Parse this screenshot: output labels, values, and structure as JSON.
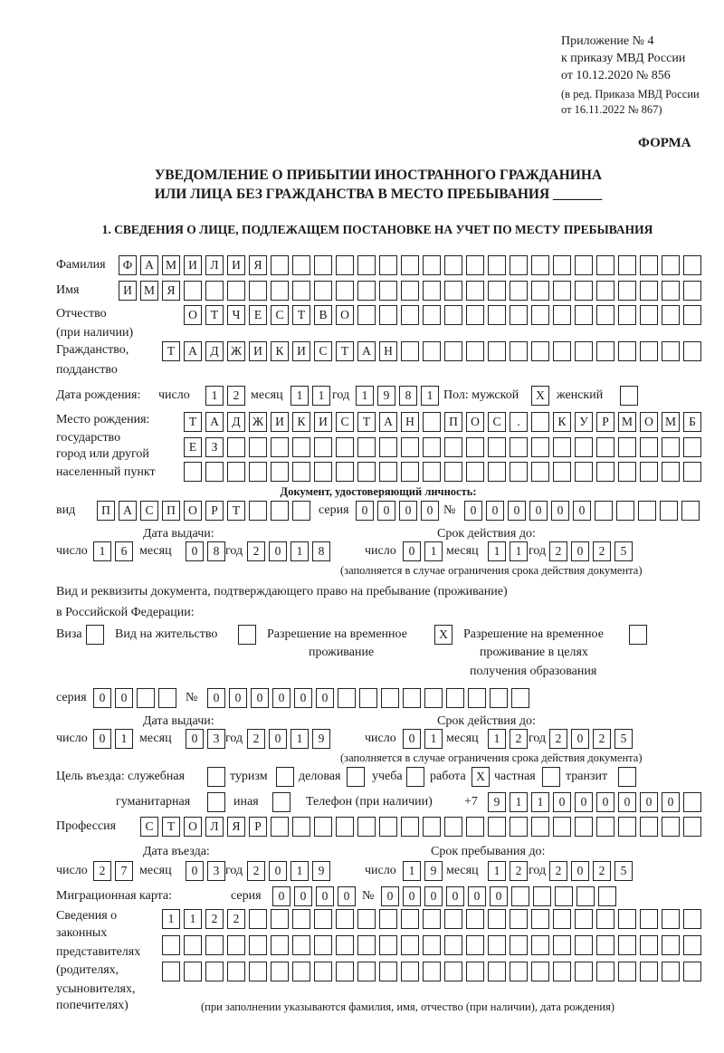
{
  "header": {
    "appendix": "Приложение № 4",
    "order": "к приказу МВД России",
    "order_date": "от 10.12.2020 № 856",
    "revision_1": "(в ред. Приказа МВД России",
    "revision_2": "от 16.11.2022 № 867)",
    "form_label": "ФОРМА",
    "title_1": "УВЕДОМЛЕНИЕ О ПРИБЫТИИ ИНОСТРАННОГО ГРАЖДАНИНА",
    "title_2": "ИЛИ ЛИЦА БЕЗ ГРАЖДАНСТВА В МЕСТО ПРЕБЫВАНИЯ _______",
    "section_1": "1. СВЕДЕНИЯ О ЛИЦЕ, ПОДЛЕЖАЩЕМ ПОСТАНОВКЕ НА УЧЕТ ПО МЕСТУ ПРЕБЫВАНИЯ"
  },
  "labels": {
    "surname": "Фамилия",
    "name": "Имя",
    "patronymic_1": "Отчество",
    "patronymic_2": "(при наличии)",
    "citizenship_1": "Гражданство,",
    "citizenship_2": "подданство",
    "birth_date": "Дата рождения:",
    "day": "число",
    "month": "месяц",
    "year": "год",
    "sex_male": "Пол: мужской",
    "sex_female": "женский",
    "birthplace_1": "Место рождения:",
    "birthplace_2": "государство",
    "birthplace_3": "город или другой",
    "birthplace_4": "населенный пункт",
    "id_doc_title": "Документ, удостоверяющий личность:",
    "doc_type": "вид",
    "series": "серия",
    "number": "№",
    "issue_date": "Дата выдачи:",
    "valid_until": "Срок действия до:",
    "validity_note": "(заполняется в случае ограничения срока действия документа)",
    "permit_title_1": "Вид и реквизиты документа, подтверждающего право на пребывание (проживание)",
    "permit_title_2": "в Российской Федерации:",
    "visa": "Виза",
    "residence": "Вид на жительство",
    "temp_permit_1": "Разрешение на временное",
    "temp_permit_2": "проживание",
    "edu_permit_1": "Разрешение на временное",
    "edu_permit_2": "проживание в целях",
    "edu_permit_3": "получения образования",
    "purpose": "Цель въезда: служебная",
    "tourism": "туризм",
    "business": "деловая",
    "study": "учеба",
    "work": "работа",
    "private": "частная",
    "transit": "транзит",
    "humanitarian": "гуманитарная",
    "other": "иная",
    "phone": "Телефон (при наличии)",
    "phone_prefix": "+7",
    "profession": "Профессия",
    "entry_date": "Дата въезда:",
    "stay_until": "Срок пребывания до:",
    "migration_card": "Миграционная карта:",
    "reps_1": "Сведения о",
    "reps_2": "законных",
    "reps_3": "представителях",
    "reps_4": "(родителях,",
    "reps_5": "усыновителях,",
    "reps_6": "попечителях)",
    "reps_note": "(при заполнении указываются фамилия, имя, отчество (при наличии), дата рождения)"
  },
  "person": {
    "surname": "ФАМИЛИЯ",
    "name": "ИМЯ",
    "patronymic": "ОТЧЕСТВО",
    "citizenship": "ТАДЖИКИСТАН"
  },
  "birth_date": {
    "day": "12",
    "month": "11",
    "year": "1981"
  },
  "sex": {
    "male": "X",
    "female": ""
  },
  "birthplace": {
    "line1": "ТАДЖИКИСТАН ПОС. КУРМОМБ",
    "line2": "ЕЗ",
    "line3": ""
  },
  "id_doc": {
    "type": "ПАСПОРТ",
    "series": "0000",
    "number": "000000",
    "issue": {
      "day": "16",
      "month": "08",
      "year": "2018"
    },
    "valid": {
      "day": "01",
      "month": "11",
      "year": "2025"
    }
  },
  "permit": {
    "visa": "",
    "residence": "",
    "temporary": "X",
    "education": "",
    "series": "00",
    "number": "000000",
    "issue": {
      "day": "01",
      "month": "03",
      "year": "2019"
    },
    "valid": {
      "day": "01",
      "month": "12",
      "year": "2025"
    }
  },
  "purpose": {
    "official": "",
    "tourism": "",
    "business": "",
    "study": "",
    "work": "X",
    "private": "",
    "transit": "",
    "humanitarian": "",
    "other": ""
  },
  "phone": "911000000",
  "profession": "СТОЛЯР",
  "entry": {
    "date": {
      "day": "27",
      "month": "03",
      "year": "2019"
    },
    "stay_until": {
      "day": "19",
      "month": "12",
      "year": "2025"
    }
  },
  "migration_card": {
    "series": "0000",
    "number": "000000"
  },
  "representatives": {
    "line1": "1122",
    "line2": "",
    "line3": ""
  }
}
